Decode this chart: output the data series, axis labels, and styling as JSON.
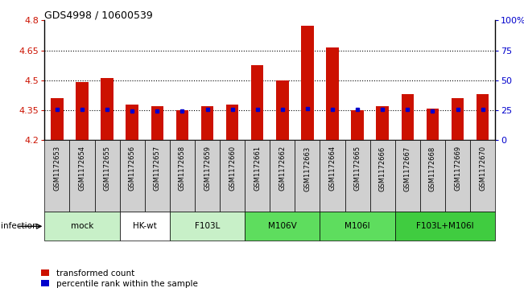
{
  "title": "GDS4998 / 10600539",
  "samples": [
    "GSM1172653",
    "GSM1172654",
    "GSM1172655",
    "GSM1172656",
    "GSM1172657",
    "GSM1172658",
    "GSM1172659",
    "GSM1172660",
    "GSM1172661",
    "GSM1172662",
    "GSM1172663",
    "GSM1172664",
    "GSM1172665",
    "GSM1172666",
    "GSM1172667",
    "GSM1172668",
    "GSM1172669",
    "GSM1172670"
  ],
  "red_values": [
    4.41,
    4.49,
    4.51,
    4.38,
    4.37,
    4.35,
    4.37,
    4.38,
    4.575,
    4.5,
    4.775,
    4.665,
    4.35,
    4.37,
    4.43,
    4.36,
    4.41,
    4.43
  ],
  "blue_values": [
    4.355,
    4.355,
    4.355,
    4.345,
    4.345,
    4.345,
    4.355,
    4.355,
    4.355,
    4.355,
    4.36,
    4.355,
    4.355,
    4.355,
    4.355,
    4.345,
    4.355,
    4.355
  ],
  "groups": [
    {
      "label": "mock",
      "start": 0,
      "end": 3,
      "color": "#c8f0c8"
    },
    {
      "label": "HK-wt",
      "start": 3,
      "end": 5,
      "color": "#ffffff"
    },
    {
      "label": "F103L",
      "start": 5,
      "end": 8,
      "color": "#c8f0c8"
    },
    {
      "label": "M106V",
      "start": 8,
      "end": 11,
      "color": "#5edd5e"
    },
    {
      "label": "M106I",
      "start": 11,
      "end": 14,
      "color": "#5edd5e"
    },
    {
      "label": "F103L+M106I",
      "start": 14,
      "end": 18,
      "color": "#40cc40"
    }
  ],
  "ylim_left": [
    4.2,
    4.8
  ],
  "ylim_right": [
    0,
    100
  ],
  "yticks_left": [
    4.2,
    4.35,
    4.5,
    4.65,
    4.8
  ],
  "yticks_right": [
    0,
    25,
    50,
    75,
    100
  ],
  "ytick_labels_left": [
    "4.2",
    "4.35",
    "4.5",
    "4.65",
    "4.8"
  ],
  "ytick_labels_right": [
    "0",
    "25",
    "50",
    "75",
    "100%"
  ],
  "hlines": [
    4.35,
    4.5,
    4.65
  ],
  "bar_color": "#cc1100",
  "dot_color": "#0000cc",
  "bar_width": 0.5,
  "infection_label": "infection",
  "legend_red": "transformed count",
  "legend_blue": "percentile rank within the sample",
  "sample_box_color": "#d0d0d0",
  "bg_color": "#ffffff"
}
